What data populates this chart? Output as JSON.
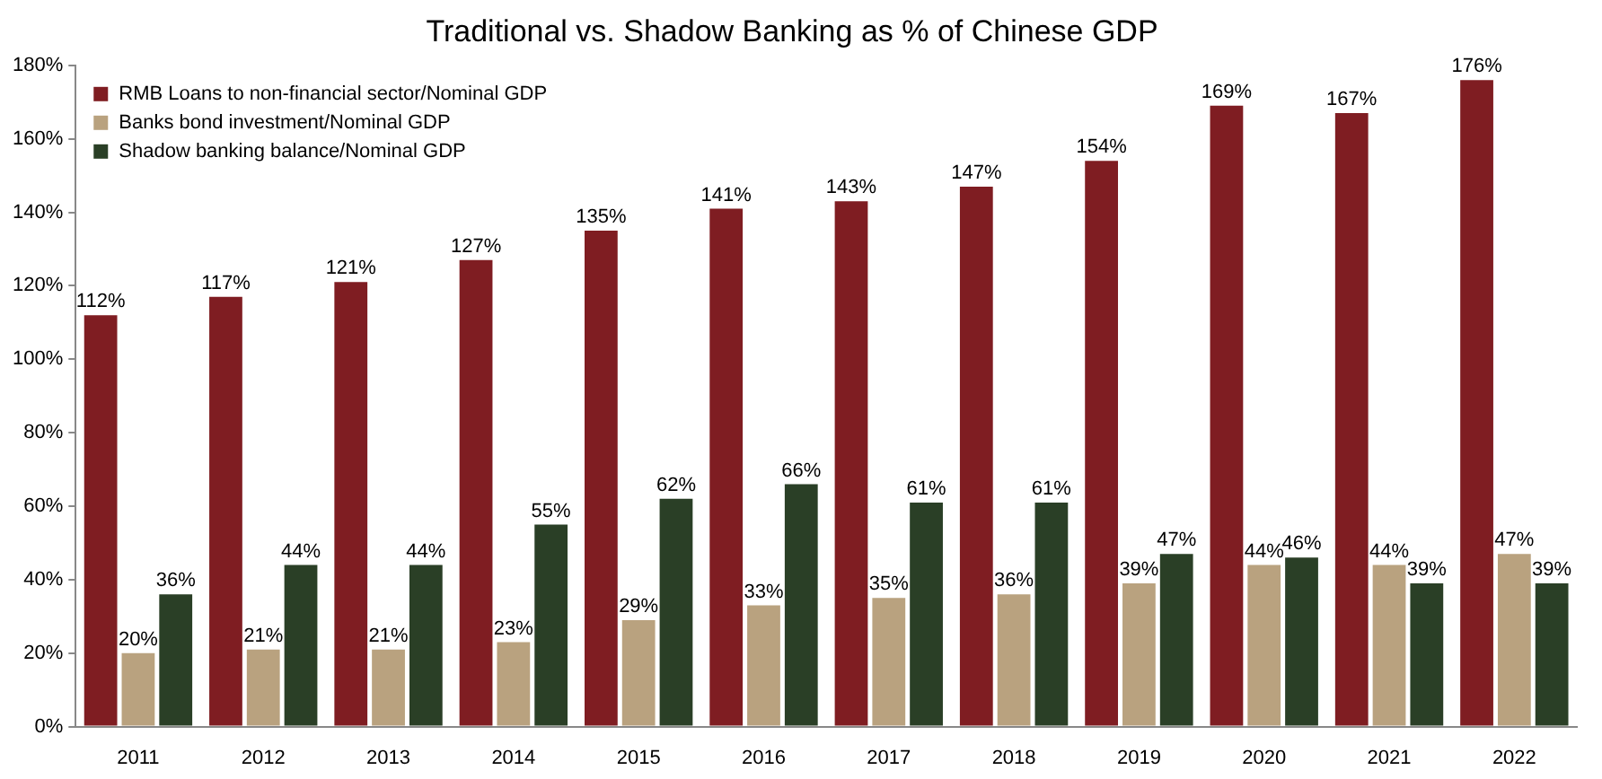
{
  "chart_data": {
    "type": "bar",
    "title": "Traditional vs. Shadow Banking as % of Chinese GDP",
    "categories": [
      "2011",
      "2012",
      "2013",
      "2014",
      "2015",
      "2016",
      "2017",
      "2018",
      "2019",
      "2020",
      "2021",
      "2022"
    ],
    "series": [
      {
        "name": "RMB Loans to non-financial sector/Nominal GDP",
        "color": "#7f1d22",
        "values": [
          112,
          117,
          121,
          127,
          135,
          141,
          143,
          147,
          154,
          169,
          167,
          176
        ],
        "value_labels": [
          "112%",
          "117%",
          "121%",
          "127%",
          "135%",
          "141%",
          "143%",
          "147%",
          "154%",
          "169%",
          "167%",
          "176%"
        ]
      },
      {
        "name": "Banks bond investment/Nominal GDP",
        "color": "#b9a27f",
        "values": [
          20,
          21,
          21,
          23,
          29,
          33,
          35,
          36,
          39,
          44,
          44,
          47
        ],
        "value_labels": [
          "20%",
          "21%",
          "21%",
          "23%",
          "29%",
          "33%",
          "35%",
          "36%",
          "39%",
          "44%",
          "44%",
          "47%"
        ]
      },
      {
        "name": "Shadow banking balance/Nominal GDP",
        "color": "#2a3f26",
        "values": [
          36,
          44,
          44,
          55,
          62,
          66,
          61,
          61,
          47,
          46,
          39,
          39
        ],
        "value_labels": [
          "36%",
          "44%",
          "44%",
          "55%",
          "62%",
          "66%",
          "61%",
          "61%",
          "47%",
          "46%",
          "39%",
          "39%"
        ]
      }
    ],
    "ylim": [
      0,
      180
    ],
    "yticks": [
      {
        "value": 0,
        "label": "0%"
      },
      {
        "value": 20,
        "label": "20%"
      },
      {
        "value": 40,
        "label": "40%"
      },
      {
        "value": 60,
        "label": "60%"
      },
      {
        "value": 80,
        "label": "80%"
      },
      {
        "value": 100,
        "label": "100%"
      },
      {
        "value": 120,
        "label": "120%"
      },
      {
        "value": 140,
        "label": "140%"
      },
      {
        "value": 160,
        "label": "160%"
      },
      {
        "value": 180,
        "label": "180%"
      }
    ],
    "grid": false,
    "legend": "top left"
  }
}
